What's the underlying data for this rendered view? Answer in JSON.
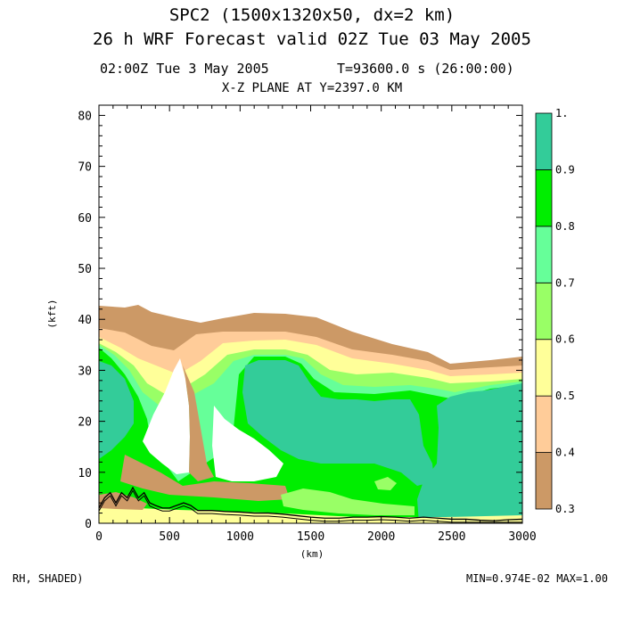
{
  "header": {
    "line1": "SPC2 (1500x1320x50, dx=2 km)",
    "line2": "26 h WRF Forecast valid 02Z Tue 03 May 2005",
    "time_left": "02:00Z Tue  3 May 2005",
    "time_right": "T=93600.0 s (26:00:00)",
    "plane": "X-Z PLANE AT Y=2397.0 KM"
  },
  "footer": {
    "field": "RH, SHADED)",
    "minmax": "MIN=0.974E-02 MAX=1.00"
  },
  "chart_data": {
    "type": "heatmap",
    "title": "X-Z PLANE AT Y=2397.0 KM",
    "xlabel": "(km)",
    "ylabel": "(kft)",
    "xlim": [
      0,
      3000
    ],
    "ylim": [
      0,
      82
    ],
    "x_ticks": [
      0,
      500,
      1000,
      1500,
      2000,
      2500,
      3000
    ],
    "y_ticks": [
      0,
      10,
      20,
      30,
      40,
      50,
      60,
      70,
      80
    ],
    "colorbar": {
      "levels": [
        0.3,
        0.4,
        0.5,
        0.6,
        0.7,
        0.8,
        0.9,
        1.0
      ],
      "labels": [
        "0.3",
        "0.4",
        "0.5",
        "0.6",
        "0.7",
        "0.8",
        "0.9",
        "1."
      ],
      "colors": [
        "#cc9966",
        "#ffcc99",
        "#ffff99",
        "#99ff66",
        "#66ff99",
        "#00ee00",
        "#33cc99"
      ]
    },
    "terrain_x": [
      0,
      40,
      80,
      120,
      160,
      200,
      240,
      280,
      320,
      360,
      400,
      450,
      500,
      550,
      600,
      650,
      700,
      800,
      900,
      1000,
      1100,
      1200,
      1300,
      1400,
      1500,
      1600,
      1700,
      1800,
      1900,
      2000,
      2100,
      2200,
      2300,
      2400,
      2500,
      2600,
      2700,
      2800,
      2900,
      3000
    ],
    "terrain_y": [
      3,
      5,
      6,
      4,
      6,
      5,
      7,
      5,
      6,
      4,
      3.5,
      3,
      3,
      3.5,
      4,
      3.5,
      2.5,
      2.5,
      2.3,
      2.2,
      2,
      2,
      1.8,
      1.5,
      1.2,
      1,
      1,
      1.2,
      1.2,
      1.3,
      1.2,
      1,
      1.2,
      1,
      0.8,
      0.8,
      0.6,
      0.5,
      0.7,
      0.8
    ]
  }
}
